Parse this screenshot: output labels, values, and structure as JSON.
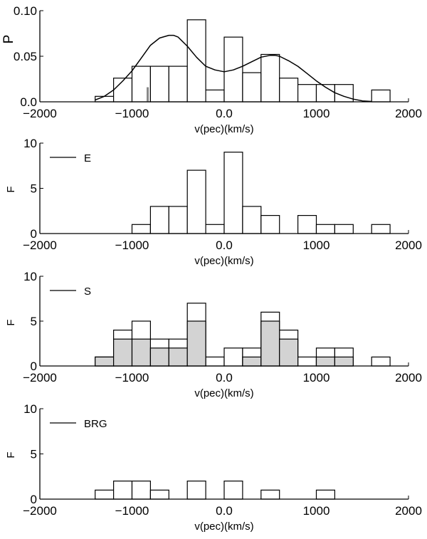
{
  "colors": {
    "line": "#000000",
    "bar_fill": "#ffffff",
    "shaded_fill": "#d3d3d3",
    "marker": "#888888"
  },
  "chart_data": [
    {
      "type": "bar",
      "panel": "P",
      "xlabel": "v(pec)(km/s)",
      "ylabel": "P",
      "xlim": [
        -2000,
        2000
      ],
      "ylim": [
        0,
        0.1
      ],
      "xticks": [
        -2000,
        -1000,
        0,
        1000,
        2000
      ],
      "xtick_labels": [
        "−2000",
        "−1000",
        "0.0",
        "1000",
        "2000"
      ],
      "yticks": [
        0,
        0.05,
        0.1
      ],
      "ytick_labels": [
        "0.0",
        "0.05",
        "0.10"
      ],
      "bin_edges": [
        -1400,
        -1200,
        -1000,
        -800,
        -600,
        -400,
        -200,
        0,
        200,
        400,
        600,
        800,
        1000,
        1200,
        1400,
        1600,
        1800
      ],
      "values": [
        0.006,
        0.026,
        0.039,
        0.039,
        0.039,
        0.09,
        0.013,
        0.071,
        0.032,
        0.052,
        0.026,
        0.019,
        0.019,
        0.019,
        0,
        0.013
      ],
      "marker": {
        "x": -830,
        "y": 0.016
      },
      "curve": {
        "x": [
          -1400,
          -1300,
          -1200,
          -1100,
          -1000,
          -900,
          -800,
          -700,
          -600,
          -550,
          -500,
          -400,
          -300,
          -200,
          -100,
          0,
          100,
          200,
          300,
          400,
          500,
          550,
          600,
          700,
          800,
          900,
          1000,
          1100,
          1200,
          1300,
          1400,
          1500,
          1600
        ],
        "y": [
          0.002,
          0.006,
          0.013,
          0.023,
          0.034,
          0.048,
          0.062,
          0.07,
          0.073,
          0.073,
          0.071,
          0.061,
          0.049,
          0.039,
          0.035,
          0.033,
          0.035,
          0.039,
          0.044,
          0.049,
          0.051,
          0.051,
          0.05,
          0.045,
          0.039,
          0.031,
          0.023,
          0.016,
          0.01,
          0.006,
          0.003,
          0.001,
          0.0004
        ]
      }
    },
    {
      "type": "bar",
      "panel": "E",
      "legend": "E",
      "xlabel": "v(pec)(km/s)",
      "ylabel": "F",
      "xlim": [
        -2000,
        2000
      ],
      "ylim": [
        0,
        10
      ],
      "xticks": [
        -2000,
        -1000,
        0,
        1000,
        2000
      ],
      "xtick_labels": [
        "−2000",
        "−1000",
        "0.0",
        "1000",
        "2000"
      ],
      "yticks": [
        0,
        5,
        10
      ],
      "ytick_labels": [
        "0",
        "5",
        "10"
      ],
      "bin_edges": [
        -1000,
        -800,
        -600,
        -400,
        -200,
        0,
        200,
        400,
        600,
        800,
        1000,
        1200,
        1400,
        1600,
        1800
      ],
      "values": [
        1,
        3,
        3,
        7,
        1,
        9,
        3,
        2,
        0,
        2,
        1,
        1,
        0,
        1
      ]
    },
    {
      "type": "bar",
      "panel": "S",
      "legend": "S",
      "xlabel": "v(pec)(km/s)",
      "ylabel": "F",
      "xlim": [
        -2000,
        2000
      ],
      "ylim": [
        0,
        10
      ],
      "xticks": [
        -2000,
        -1000,
        0,
        1000,
        2000
      ],
      "xtick_labels": [
        "−2000",
        "−1000",
        "0.0",
        "1000",
        "2000"
      ],
      "yticks": [
        0,
        5,
        10
      ],
      "ytick_labels": [
        "0",
        "5",
        "10"
      ],
      "bin_edges": [
        -1400,
        -1200,
        -1000,
        -800,
        -600,
        -400,
        -200,
        0,
        200,
        400,
        600,
        800,
        1000,
        1200,
        1400,
        1600,
        1800
      ],
      "values": [
        1,
        4,
        5,
        3,
        3,
        7,
        1,
        2,
        2,
        6,
        4,
        1,
        2,
        2,
        0,
        1
      ],
      "shaded_values": [
        1,
        3,
        3,
        2,
        2,
        5,
        0,
        0,
        1,
        5,
        3,
        0,
        1,
        1,
        0,
        0
      ]
    },
    {
      "type": "bar",
      "panel": "BRG",
      "legend": "BRG",
      "xlabel": "v(pec)(km/s)",
      "ylabel": "F",
      "xlim": [
        -2000,
        2000
      ],
      "ylim": [
        0,
        10
      ],
      "xticks": [
        -2000,
        -1000,
        0,
        1000,
        2000
      ],
      "xtick_labels": [
        "−2000",
        "−1000",
        "0.0",
        "1000",
        "2000"
      ],
      "yticks": [
        0,
        5,
        10
      ],
      "ytick_labels": [
        "0",
        "5",
        "10"
      ],
      "bin_edges": [
        -1400,
        -1200,
        -1000,
        -800,
        -600,
        -400,
        -200,
        0,
        200,
        400,
        600,
        800,
        1000,
        1200
      ],
      "values": [
        1,
        2,
        2,
        1,
        0,
        2,
        0,
        2,
        0,
        1,
        0,
        0,
        1
      ]
    }
  ]
}
